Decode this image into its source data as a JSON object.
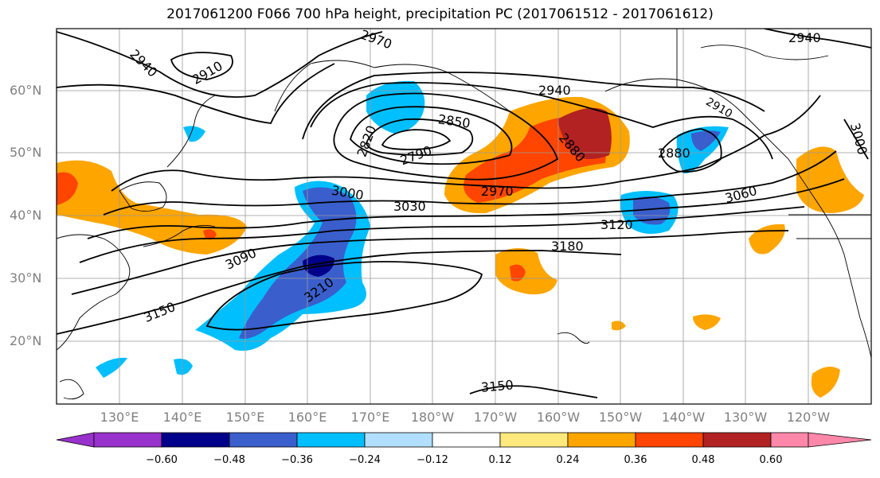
{
  "title": "2017061200 F066 700 hPa height, precipitation PC (2017061512 - 2017061612)",
  "lat_labels": [
    "60°N",
    "50°N",
    "40°N",
    "30°N",
    "20°N"
  ],
  "lon_labels": [
    "130°E",
    "140°E",
    "150°E",
    "160°E",
    "170°E",
    "180°W",
    "170°W",
    "160°W",
    "150°W",
    "140°W",
    "130°W",
    "120°W"
  ],
  "contour_labels": [
    "2940",
    "2910",
    "2970",
    "2940",
    "2850",
    "2820",
    "2790",
    "2880",
    "2880",
    "3000",
    "3030",
    "2970",
    "3060",
    "3120",
    "3180",
    "3090",
    "3210",
    "3150",
    "3150",
    "2940",
    "3000",
    "2910"
  ],
  "colorbar": {
    "ticks": [
      "−0.60",
      "−0.48",
      "−0.36",
      "−0.24",
      "−0.12",
      "0.12",
      "0.24",
      "0.36",
      "0.48",
      "0.60"
    ],
    "colors": [
      "#9932cc",
      "#00008b",
      "#3a5fcd",
      "#00bfff",
      "#b2dfff",
      "#ffffff",
      "#ffe87c",
      "#ffa500",
      "#ff4500",
      "#b22222",
      "#ff88aa"
    ]
  }
}
